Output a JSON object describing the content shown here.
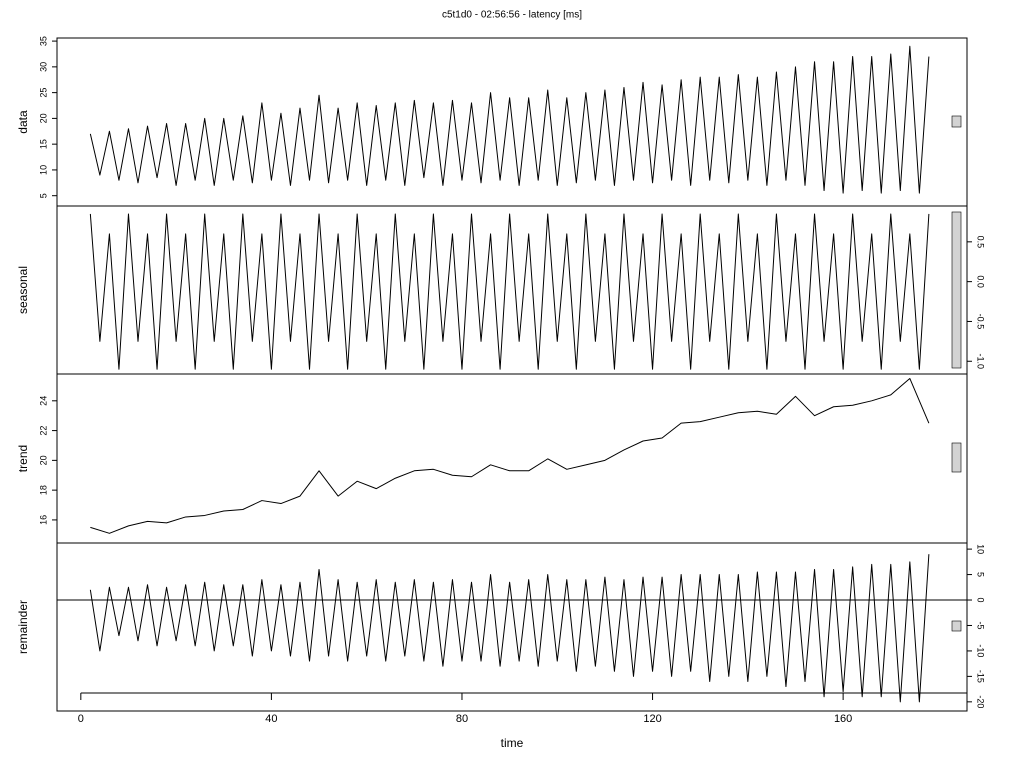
{
  "chart_data": {
    "type": "line",
    "title": "c5t1d0 - 02:56:56 - latency [ms]",
    "xlabel": "time",
    "xlim": [
      -5,
      186
    ],
    "xticks": [
      0,
      40,
      80,
      120,
      160
    ],
    "color": "#000000",
    "panels": [
      {
        "ylabel": "data",
        "axis_side": "left",
        "ylim": [
          3,
          35.6
        ],
        "yticks": [
          5,
          10,
          15,
          20,
          25,
          30,
          35
        ],
        "x": [
          2,
          4,
          6,
          8,
          10,
          12,
          14,
          16,
          18,
          20,
          22,
          24,
          26,
          28,
          30,
          32,
          34,
          36,
          38,
          40,
          42,
          44,
          46,
          48,
          50,
          52,
          54,
          56,
          58,
          60,
          62,
          64,
          66,
          68,
          70,
          72,
          74,
          76,
          78,
          80,
          82,
          84,
          86,
          88,
          90,
          92,
          94,
          96,
          98,
          100,
          102,
          104,
          106,
          108,
          110,
          112,
          114,
          116,
          118,
          120,
          122,
          124,
          126,
          128,
          130,
          132,
          134,
          136,
          138,
          140,
          142,
          144,
          146,
          148,
          150,
          152,
          154,
          156,
          158,
          160,
          162,
          164,
          166,
          168,
          170,
          172,
          174,
          176,
          178
        ],
        "values": [
          17,
          9,
          17.5,
          8,
          18,
          7.5,
          18.5,
          8.5,
          19,
          7,
          19,
          8,
          20,
          7,
          20,
          8,
          20.5,
          7.5,
          23,
          8,
          21,
          7,
          22,
          8,
          24.5,
          7.5,
          22,
          8,
          23,
          7,
          22.5,
          8,
          23,
          7,
          23.5,
          8.5,
          23,
          7,
          23.5,
          8,
          23,
          7.5,
          25,
          8,
          24,
          7,
          24,
          8,
          25.5,
          7,
          24,
          7.5,
          25,
          8,
          25.5,
          7,
          26,
          8,
          27,
          7.5,
          26.5,
          8,
          27.5,
          7,
          28,
          8,
          28,
          7.5,
          28.5,
          8,
          28,
          7,
          29,
          8,
          30,
          7,
          31,
          6,
          31,
          5.5,
          32,
          6,
          32,
          5.5,
          32.5,
          6,
          34,
          5.5,
          32
        ]
      },
      {
        "ylabel": "seasonal",
        "axis_side": "right",
        "ylim": [
          -1.16,
          0.95
        ],
        "yticks": [
          {
            "value": -1,
            "label": "-1.0"
          },
          -0.5,
          {
            "value": 0,
            "label": "0.0"
          },
          0.5
        ],
        "x": [
          2,
          4,
          6,
          8,
          10,
          12,
          14,
          16,
          18,
          20,
          22,
          24,
          26,
          28,
          30,
          32,
          34,
          36,
          38,
          40,
          42,
          44,
          46,
          48,
          50,
          52,
          54,
          56,
          58,
          60,
          62,
          64,
          66,
          68,
          70,
          72,
          74,
          76,
          78,
          80,
          82,
          84,
          86,
          88,
          90,
          92,
          94,
          96,
          98,
          100,
          102,
          104,
          106,
          108,
          110,
          112,
          114,
          116,
          118,
          120,
          122,
          124,
          126,
          128,
          130,
          132,
          134,
          136,
          138,
          140,
          142,
          144,
          146,
          148,
          150,
          152,
          154,
          156,
          158,
          160,
          162,
          164,
          166,
          168,
          170,
          172,
          174,
          176,
          178
        ],
        "values": [
          0.85,
          -0.75,
          0.6,
          -1.1,
          0.85,
          -0.75,
          0.6,
          -1.1,
          0.85,
          -0.75,
          0.6,
          -1.1,
          0.85,
          -0.75,
          0.6,
          -1.1,
          0.85,
          -0.75,
          0.6,
          -1.1,
          0.85,
          -0.75,
          0.6,
          -1.1,
          0.85,
          -0.75,
          0.6,
          -1.1,
          0.85,
          -0.75,
          0.6,
          -1.1,
          0.85,
          -0.75,
          0.6,
          -1.1,
          0.85,
          -0.75,
          0.6,
          -1.1,
          0.85,
          -0.75,
          0.6,
          -1.1,
          0.85,
          -0.75,
          0.6,
          -1.1,
          0.85,
          -0.75,
          0.6,
          -1.1,
          0.85,
          -0.75,
          0.6,
          -1.1,
          0.85,
          -0.75,
          0.6,
          -1.1,
          0.85,
          -0.75,
          0.6,
          -1.1,
          0.85,
          -0.75,
          0.6,
          -1.1,
          0.85,
          -0.75,
          0.6,
          -1.1,
          0.85,
          -0.75,
          0.6,
          -1.1,
          0.85,
          -0.75,
          0.6,
          -1.1,
          0.85,
          -0.75,
          0.6,
          -1.1,
          0.85,
          -0.75,
          0.6,
          -1.1,
          0.85
        ]
      },
      {
        "ylabel": "trend",
        "axis_side": "left",
        "ylim": [
          14.45,
          25.8
        ],
        "yticks": [
          16,
          18,
          20,
          22,
          24
        ],
        "x": [
          2,
          6,
          10,
          14,
          18,
          22,
          26,
          30,
          34,
          38,
          42,
          46,
          50,
          54,
          58,
          62,
          66,
          70,
          74,
          78,
          82,
          86,
          90,
          94,
          98,
          102,
          106,
          110,
          114,
          118,
          122,
          126,
          130,
          134,
          138,
          142,
          146,
          150,
          154,
          158,
          162,
          166,
          170,
          174,
          178
        ],
        "values": [
          15.5,
          15.1,
          15.6,
          15.9,
          15.8,
          16.2,
          16.3,
          16.6,
          16.7,
          17.3,
          17.1,
          17.6,
          19.3,
          17.6,
          18.6,
          18.1,
          18.8,
          19.3,
          19.4,
          19,
          18.9,
          19.7,
          19.3,
          19.3,
          20.1,
          19.4,
          19.7,
          20,
          20.7,
          21.3,
          21.5,
          22.5,
          22.6,
          22.9,
          23.2,
          23.3,
          23.1,
          24.3,
          23,
          23.6,
          23.7,
          24,
          24.4,
          25.5,
          22.5
        ]
      },
      {
        "ylabel": "remainder",
        "axis_side": "right",
        "ylim": [
          -21.8,
          11.2
        ],
        "yticks": [
          -20,
          -15,
          -10,
          -5,
          0,
          5,
          10
        ],
        "hline": 0,
        "x": [
          2,
          4,
          6,
          8,
          10,
          12,
          14,
          16,
          18,
          20,
          22,
          24,
          26,
          28,
          30,
          32,
          34,
          36,
          38,
          40,
          42,
          44,
          46,
          48,
          50,
          52,
          54,
          56,
          58,
          60,
          62,
          64,
          66,
          68,
          70,
          72,
          74,
          76,
          78,
          80,
          82,
          84,
          86,
          88,
          90,
          92,
          94,
          96,
          98,
          100,
          102,
          104,
          106,
          108,
          110,
          112,
          114,
          116,
          118,
          120,
          122,
          124,
          126,
          128,
          130,
          132,
          134,
          136,
          138,
          140,
          142,
          144,
          146,
          148,
          150,
          152,
          154,
          156,
          158,
          160,
          162,
          164,
          166,
          168,
          170,
          172,
          174,
          176,
          178
        ],
        "values": [
          2,
          -10,
          2.5,
          -7,
          2.5,
          -8,
          3,
          -9,
          2.5,
          -8,
          3,
          -9,
          3.5,
          -10,
          3,
          -9,
          3,
          -11,
          4,
          -10,
          3,
          -11,
          3.5,
          -12,
          6,
          -11,
          4,
          -12,
          3.5,
          -11,
          4,
          -12,
          3.5,
          -11,
          4,
          -12,
          3.5,
          -13,
          4,
          -12,
          3.5,
          -12,
          5,
          -13,
          3.5,
          -12,
          4,
          -13,
          5,
          -12,
          4,
          -14,
          4,
          -13,
          4.5,
          -14,
          4,
          -15,
          4.5,
          -14,
          4.5,
          -15,
          5,
          -14,
          5,
          -16,
          5,
          -15,
          5,
          -16,
          5.5,
          -15,
          5.5,
          -17,
          5.5,
          -16,
          6,
          -19,
          6,
          -18,
          6.5,
          -19,
          7,
          -19,
          7,
          -20,
          7.5,
          -20,
          9
        ]
      }
    ]
  }
}
